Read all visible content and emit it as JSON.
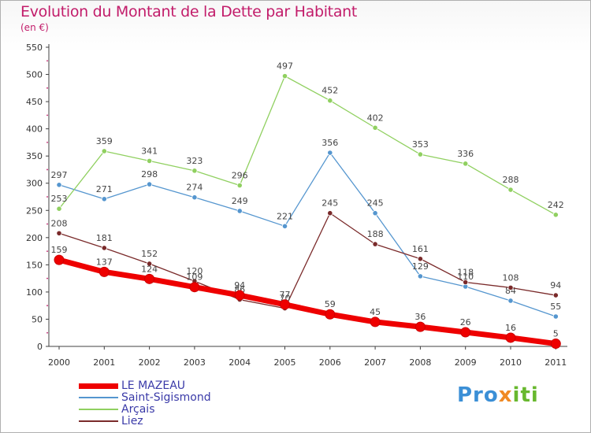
{
  "header": {
    "title": "Evolution du Montant de la Dette par Habitant",
    "subtitle": "(en €)"
  },
  "brand": {
    "logo_part1": "Pro",
    "logo_part2": "x",
    "logo_part3": "iti"
  },
  "colors": {
    "title": "#c21c6a",
    "axis": "#404040",
    "grid_dots": "#c21c6a"
  },
  "chart_data": {
    "type": "line",
    "title": "Evolution du Montant de la Dette par Habitant",
    "subtitle": "(en €)",
    "xlabel": "",
    "ylabel": "",
    "x": [
      "2000",
      "2001",
      "2002",
      "2003",
      "2004",
      "2005",
      "2006",
      "2007",
      "2008",
      "2009",
      "2010",
      "2011"
    ],
    "ylim": [
      0,
      550
    ],
    "yticks": [
      0,
      50,
      100,
      150,
      200,
      250,
      300,
      350,
      400,
      450,
      500,
      550
    ],
    "legend_position": "bottom-left",
    "series": [
      {
        "name": "LE MAZEAU",
        "color": "#ee0000",
        "values": [
          159,
          137,
          124,
          109,
          94,
          77,
          59,
          45,
          36,
          26,
          16,
          5
        ]
      },
      {
        "name": "Saint-Sigismond",
        "color": "#5596cf",
        "values": [
          297,
          271,
          298,
          274,
          249,
          221,
          356,
          245,
          129,
          110,
          84,
          55
        ]
      },
      {
        "name": "Arçais",
        "color": "#90d060",
        "values": [
          253,
          359,
          341,
          323,
          296,
          497,
          452,
          402,
          353,
          336,
          288,
          242
        ]
      },
      {
        "name": "Liez",
        "color": "#7a2a2a",
        "values": [
          208,
          181,
          152,
          120,
          86,
          70,
          245,
          188,
          161,
          118,
          108,
          94
        ]
      }
    ]
  }
}
